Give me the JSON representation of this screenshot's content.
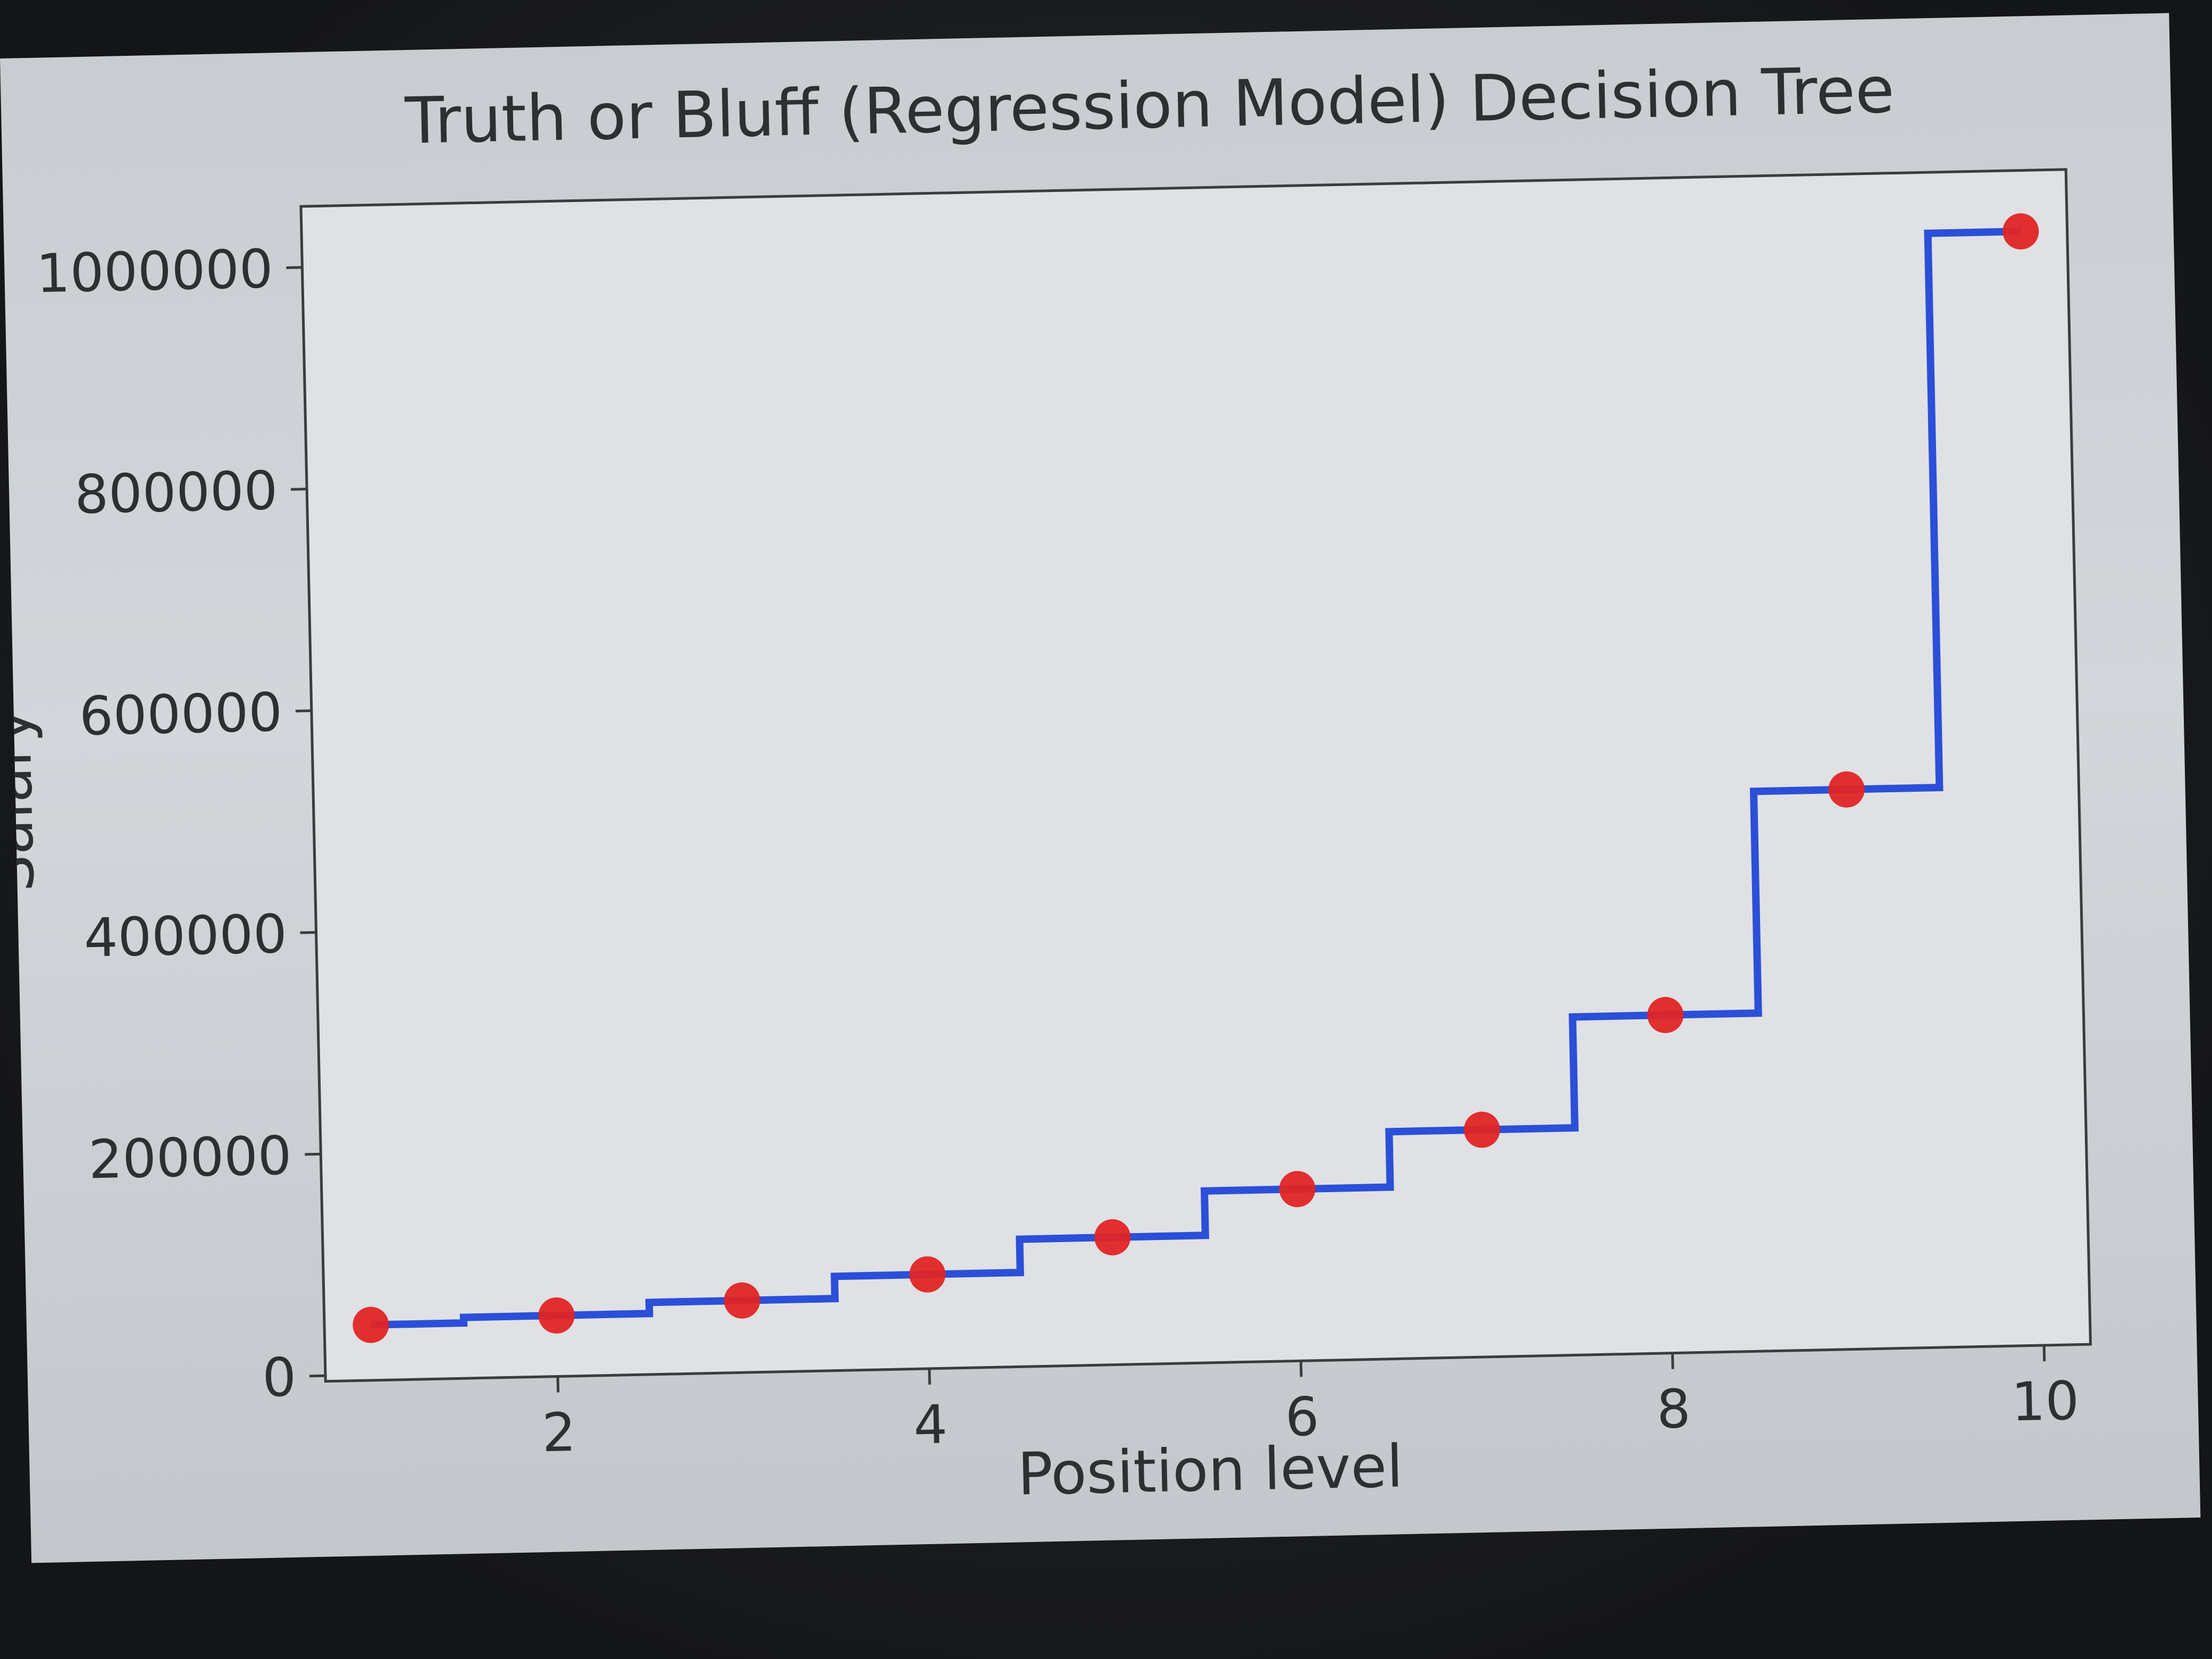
{
  "chart_data": {
    "type": "line",
    "title": "Truth or Bluff (Regression Model) Decision Tree",
    "xlabel": "Position level",
    "ylabel": "Salary",
    "xlim": [
      0.75,
      10.25
    ],
    "ylim": [
      -5000,
      1055000
    ],
    "xticks": [
      2,
      4,
      6,
      8,
      10
    ],
    "yticks": [
      0,
      200000,
      400000,
      600000,
      800000,
      1000000
    ],
    "xtick_labels": [
      "2",
      "4",
      "6",
      "8",
      "10"
    ],
    "ytick_labels": [
      "0",
      "200000",
      "400000",
      "600000",
      "800000",
      "1000000"
    ],
    "grid": false,
    "series": [
      {
        "kind": "scatter",
        "color": "#e02424",
        "x": [
          1,
          2,
          3,
          4,
          5,
          6,
          7,
          8,
          9,
          10
        ],
        "y": [
          45000,
          50000,
          60000,
          80000,
          110000,
          150000,
          200000,
          300000,
          500000,
          1000000
        ]
      },
      {
        "kind": "step",
        "color": "#2b4fd8",
        "x": [
          1,
          1.5,
          1.5,
          2.5,
          2.5,
          3.5,
          3.5,
          4.5,
          4.5,
          5.5,
          5.5,
          6.5,
          6.5,
          7.5,
          7.5,
          8.5,
          8.5,
          9.5,
          9.5,
          10
        ],
        "y": [
          45000,
          45000,
          50000,
          50000,
          60000,
          60000,
          80000,
          80000,
          110000,
          110000,
          150000,
          150000,
          200000,
          200000,
          300000,
          300000,
          500000,
          500000,
          1000000,
          1000000
        ]
      }
    ]
  }
}
